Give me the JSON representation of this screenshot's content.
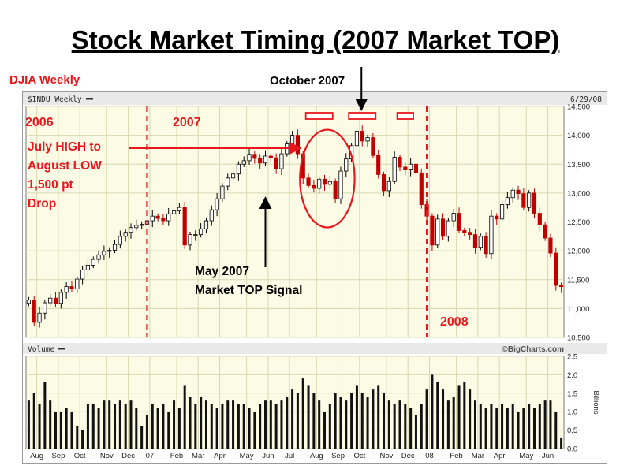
{
  "slide": {
    "title": "Stock Market Timing (2007 Market TOP)",
    "djia_label": "DJIA Weekly",
    "october_label": "October 2007"
  },
  "annotations": {
    "year_2006": "2006",
    "year_2007": "2007",
    "year_2008": "2008",
    "july_high": [
      "July HIGH to",
      "August LOW",
      "1,500 pt",
      "Drop"
    ],
    "may_signal": [
      "May 2007",
      "Market TOP Signal"
    ]
  },
  "colors": {
    "accent_red": "#e8171d",
    "up": "#000000",
    "down": "#c00000",
    "plot_bg": "#fbfbe6"
  },
  "chart_data": {
    "type": "candlestick",
    "symbol_label": "$INDU Weekly",
    "date_label": "6/29/08",
    "watermark": "©BigCharts.com",
    "price_ticks": [
      10500,
      11000,
      11500,
      12000,
      12500,
      13000,
      13500,
      14000,
      14500
    ],
    "price_tick_labels": [
      "10,500",
      "11,000",
      "11,500",
      "12,000",
      "12,500",
      "13,000",
      "13,500",
      "14,000",
      "14,500"
    ],
    "ylim": [
      10500,
      14500
    ],
    "volume_label": "Volume",
    "volume_unit": "Billions",
    "volume_ticks": [
      0,
      0.5,
      1.0,
      1.5,
      2.0,
      2.5
    ],
    "volume_tick_labels": [
      "0.0",
      "0.5",
      "1.0",
      "1.5",
      "2.0",
      "2.5"
    ],
    "vlim": [
      0,
      2.5
    ],
    "month_labels": [
      {
        "label": "Aug",
        "week": 2
      },
      {
        "label": "Sep",
        "week": 6
      },
      {
        "label": "Oct",
        "week": 10
      },
      {
        "label": "Nov",
        "week": 15
      },
      {
        "label": "Dec",
        "week": 19
      },
      {
        "label": "07",
        "week": 23
      },
      {
        "label": "Feb",
        "week": 28
      },
      {
        "label": "Mar",
        "week": 32
      },
      {
        "label": "Apr",
        "week": 36
      },
      {
        "label": "May",
        "week": 41
      },
      {
        "label": "Jun",
        "week": 45
      },
      {
        "label": "Jul",
        "week": 49
      },
      {
        "label": "Aug",
        "week": 54
      },
      {
        "label": "Sep",
        "week": 58
      },
      {
        "label": "Oct",
        "week": 62
      },
      {
        "label": "Nov",
        "week": 67
      },
      {
        "label": "Dec",
        "week": 71
      },
      {
        "label": "08",
        "week": 75
      },
      {
        "label": "Feb",
        "week": 80
      },
      {
        "label": "Mar",
        "week": 84
      },
      {
        "label": "Apr",
        "week": 88
      },
      {
        "label": "May",
        "week": 93
      },
      {
        "label": "Jun",
        "week": 97
      }
    ],
    "year_divider_weeks": [
      22.5,
      74.5
    ],
    "circle_week_range": [
      51,
      60
    ],
    "top_box_weeks": [
      [
        52,
        57
      ],
      [
        60,
        65
      ],
      [
        69,
        72
      ]
    ],
    "arrow_july_week": 51,
    "arrow_may_week": 44,
    "arrow_october_week": 62,
    "closes": [
      11150,
      10760,
      10920,
      11100,
      11180,
      11090,
      11280,
      11380,
      11340,
      11510,
      11670,
      11750,
      11850,
      11930,
      11990,
      12010,
      12110,
      12250,
      12320,
      12400,
      12440,
      12460,
      12520,
      12600,
      12560,
      12520,
      12640,
      12690,
      12750,
      12100,
      12280,
      12280,
      12380,
      12520,
      12710,
      12900,
      13120,
      13260,
      13330,
      13500,
      13560,
      13670,
      13600,
      13520,
      13640,
      13610,
      13420,
      13680,
      13850,
      14000,
      13680,
      13260,
      13130,
      13080,
      13240,
      13150,
      13200,
      12900,
      13380,
      13590,
      13820,
      14070,
      13900,
      13960,
      13650,
      13320,
      13040,
      13200,
      13620,
      13450,
      13400,
      13500,
      13350,
      12800,
      12600,
      12100,
      12550,
      12250,
      12520,
      12650,
      12350,
      12320,
      12280,
      12060,
      12250,
      11950,
      12600,
      12550,
      12800,
      12920,
      13050,
      12990,
      12750,
      13000,
      12650,
      12450,
      12220,
      11960,
      11400,
      11380
    ],
    "volumes": [
      1.3,
      1.5,
      1.2,
      1.8,
      1.3,
      1.0,
      1.0,
      1.1,
      1.0,
      0.6,
      0.5,
      1.2,
      1.2,
      1.1,
      1.3,
      1.3,
      1.2,
      1.3,
      1.2,
      1.3,
      1.1,
      0.6,
      0.9,
      1.2,
      1.1,
      1.2,
      1.0,
      1.3,
      1.1,
      1.7,
      1.4,
      1.2,
      1.4,
      1.3,
      1.2,
      1.1,
      1.2,
      1.3,
      1.3,
      1.2,
      1.2,
      1.1,
      1.0,
      1.2,
      1.3,
      1.3,
      1.2,
      1.3,
      1.4,
      1.6,
      1.5,
      1.9,
      1.7,
      1.5,
      1.3,
      1.0,
      1.2,
      1.5,
      1.4,
      1.3,
      1.5,
      1.7,
      1.5,
      1.4,
      1.6,
      1.7,
      1.5,
      1.3,
      1.2,
      1.3,
      1.2,
      1.1,
      0.9,
      1.2,
      1.6,
      2.0,
      1.8,
      1.6,
      1.3,
      1.4,
      1.7,
      1.8,
      1.6,
      1.3,
      1.2,
      1.1,
      1.2,
      1.1,
      1.2,
      1.1,
      1.2,
      1.0,
      1.1,
      1.2,
      1.1,
      1.2,
      1.3,
      1.3,
      1.0,
      0.3
    ]
  }
}
